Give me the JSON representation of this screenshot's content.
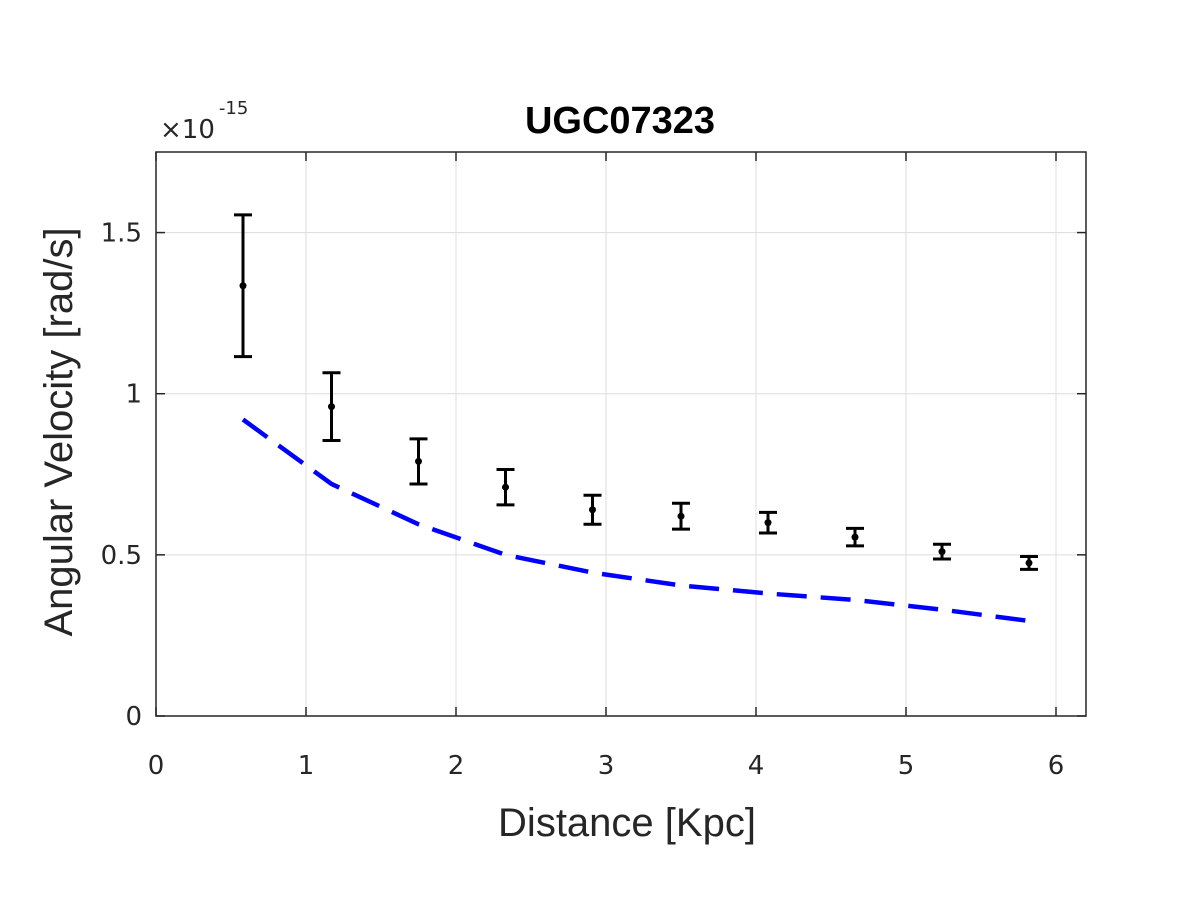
{
  "chart_data": {
    "type": "scatter",
    "title": "UGC07323",
    "xlabel": "Distance [Kpc]",
    "ylabel": "Angular Velocity [rad/s]",
    "y_exponent_prefix": "×10",
    "y_exponent": "-15",
    "xlim": [
      0,
      6.2
    ],
    "ylim": [
      0,
      1.75
    ],
    "xticks": [
      0,
      1,
      2,
      3,
      4,
      5,
      6
    ],
    "xtick_labels": [
      "0",
      "1",
      "2",
      "3",
      "4",
      "5",
      "6"
    ],
    "yticks": [
      0,
      0.5,
      1,
      1.5
    ],
    "ytick_labels": [
      "0",
      "0.5",
      "1",
      "1.5"
    ],
    "grid": true,
    "series": [
      {
        "kind": "errorbar",
        "color": "#000000",
        "x": [
          0.58,
          1.17,
          1.75,
          2.33,
          2.91,
          3.5,
          4.08,
          4.66,
          5.24,
          5.82
        ],
        "y": [
          1.335,
          0.96,
          0.79,
          0.71,
          0.64,
          0.62,
          0.6,
          0.555,
          0.51,
          0.475
        ],
        "yerr": [
          0.22,
          0.105,
          0.07,
          0.055,
          0.045,
          0.04,
          0.032,
          0.027,
          0.023,
          0.02
        ]
      },
      {
        "kind": "dashed-line",
        "color": "#0000ff",
        "x": [
          0.58,
          1.17,
          1.75,
          2.33,
          2.91,
          3.5,
          4.08,
          4.66,
          5.24,
          5.82
        ],
        "y": [
          0.92,
          0.72,
          0.595,
          0.5,
          0.445,
          0.405,
          0.38,
          0.36,
          0.33,
          0.295
        ]
      }
    ]
  }
}
